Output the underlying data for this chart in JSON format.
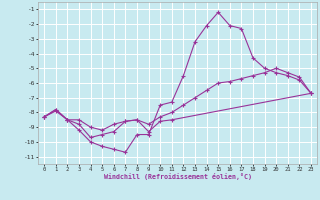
{
  "background_color": "#c8eaf0",
  "grid_color": "#ffffff",
  "line_color": "#993399",
  "xlabel": "Windchill (Refroidissement éolien,°C)",
  "ylim": [
    -11.5,
    -0.5
  ],
  "yticks": [
    -11,
    -10,
    -9,
    -8,
    -7,
    -6,
    -5,
    -4,
    -3,
    -2,
    -1
  ],
  "xlim": [
    -0.5,
    23.5
  ],
  "xticks": [
    0,
    1,
    2,
    3,
    4,
    5,
    6,
    7,
    8,
    9,
    10,
    11,
    12,
    13,
    14,
    15,
    16,
    17,
    18,
    19,
    20,
    21,
    22,
    23
  ],
  "series1_x": [
    0,
    1,
    2,
    3,
    4,
    5,
    6,
    7,
    8,
    9,
    10,
    11,
    12,
    13,
    14,
    15,
    16,
    17,
    18,
    19,
    20,
    21,
    22,
    23
  ],
  "series1_y": [
    -8.3,
    -7.8,
    -8.5,
    -9.2,
    -10.0,
    -10.3,
    -10.5,
    -10.7,
    -9.5,
    -9.5,
    -7.5,
    -7.3,
    -5.5,
    -3.2,
    -2.1,
    -1.2,
    -2.1,
    -2.3,
    -4.3,
    -5.0,
    -5.3,
    -5.5,
    -5.8,
    -6.7
  ],
  "series2_x": [
    0,
    1,
    2,
    3,
    4,
    5,
    6,
    7,
    8,
    9,
    10,
    11,
    12,
    13,
    14,
    15,
    16,
    17,
    18,
    19,
    20,
    21,
    22,
    23
  ],
  "series2_y": [
    -8.3,
    -7.9,
    -8.5,
    -8.5,
    -9.0,
    -9.2,
    -8.8,
    -8.6,
    -8.5,
    -8.8,
    -8.3,
    -8.0,
    -7.5,
    -7.0,
    -6.5,
    -6.0,
    -5.9,
    -5.7,
    -5.5,
    -5.3,
    -5.0,
    -5.3,
    -5.6,
    -6.7
  ],
  "series3_x": [
    0,
    1,
    2,
    3,
    4,
    5,
    6,
    7,
    8,
    9,
    10,
    11,
    23
  ],
  "series3_y": [
    -8.3,
    -7.8,
    -8.5,
    -8.8,
    -9.7,
    -9.5,
    -9.3,
    -8.6,
    -8.5,
    -9.3,
    -8.6,
    -8.5,
    -6.7
  ]
}
